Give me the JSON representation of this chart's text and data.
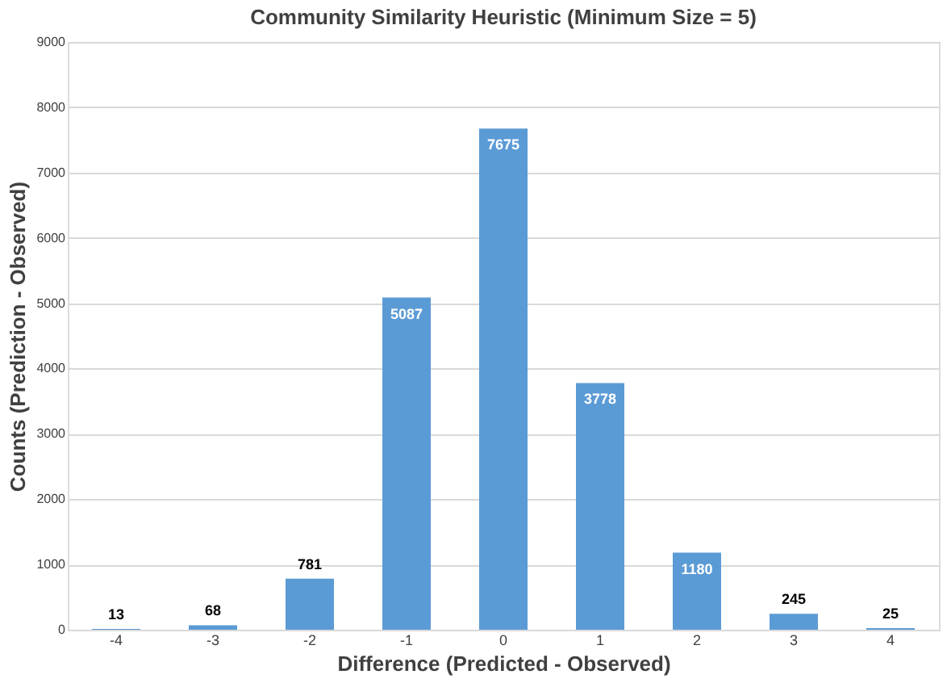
{
  "chart_data": {
    "type": "bar",
    "title": "Community Similarity Heuristic (Minimum Size = 5)",
    "xlabel": "Difference (Predicted - Observed)",
    "ylabel": "Counts (Prediction - Observed)",
    "categories": [
      "-4",
      "-3",
      "-2",
      "-1",
      "0",
      "1",
      "2",
      "3",
      "4"
    ],
    "values": [
      13,
      68,
      781,
      5087,
      7675,
      3778,
      1180,
      245,
      25
    ],
    "color": "#5b9bd5",
    "ylim": [
      0,
      9000
    ],
    "yticks": [
      0,
      1000,
      2000,
      3000,
      4000,
      5000,
      6000,
      7000,
      8000,
      9000
    ],
    "grid": "y",
    "data_labels": true
  }
}
